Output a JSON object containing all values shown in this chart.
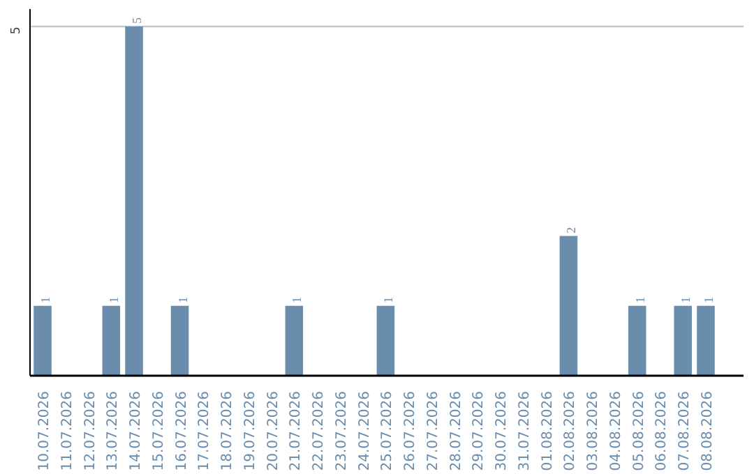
{
  "chart_data": {
    "type": "bar",
    "categories": [
      "10.07.2026",
      "11.07.2026",
      "12.07.2026",
      "13.07.2026",
      "14.07.2026",
      "15.07.2026",
      "16.07.2026",
      "17.07.2026",
      "18.07.2026",
      "19.07.2026",
      "20.07.2026",
      "21.07.2026",
      "22.07.2026",
      "23.07.2026",
      "24.07.2026",
      "25.07.2026",
      "26.07.2026",
      "27.07.2026",
      "28.07.2026",
      "29.07.2026",
      "30.07.2026",
      "31.07.2026",
      "01.08.2026",
      "02.08.2026",
      "03.08.2026",
      "04.08.2026",
      "05.08.2026",
      "06.08.2026",
      "07.08.2026",
      "08.08.2026"
    ],
    "values": [
      1,
      0,
      0,
      1,
      5,
      0,
      1,
      0,
      0,
      0,
      0,
      1,
      0,
      0,
      0,
      1,
      0,
      0,
      0,
      0,
      0,
      0,
      0,
      2,
      0,
      0,
      1,
      0,
      1,
      1
    ],
    "value_labels": [
      "1",
      null,
      null,
      "1",
      "5",
      null,
      "1",
      null,
      null,
      null,
      null,
      "1",
      null,
      null,
      null,
      "1",
      null,
      null,
      null,
      null,
      null,
      null,
      null,
      "2",
      null,
      null,
      "1",
      null,
      "1",
      "1"
    ],
    "color": "#6a8cad",
    "ylim": [
      0,
      5
    ],
    "yticks": [
      5
    ],
    "ref_lines": [
      {
        "axis": "y",
        "value": 5,
        "color": "#c8c8c8"
      }
    ]
  }
}
